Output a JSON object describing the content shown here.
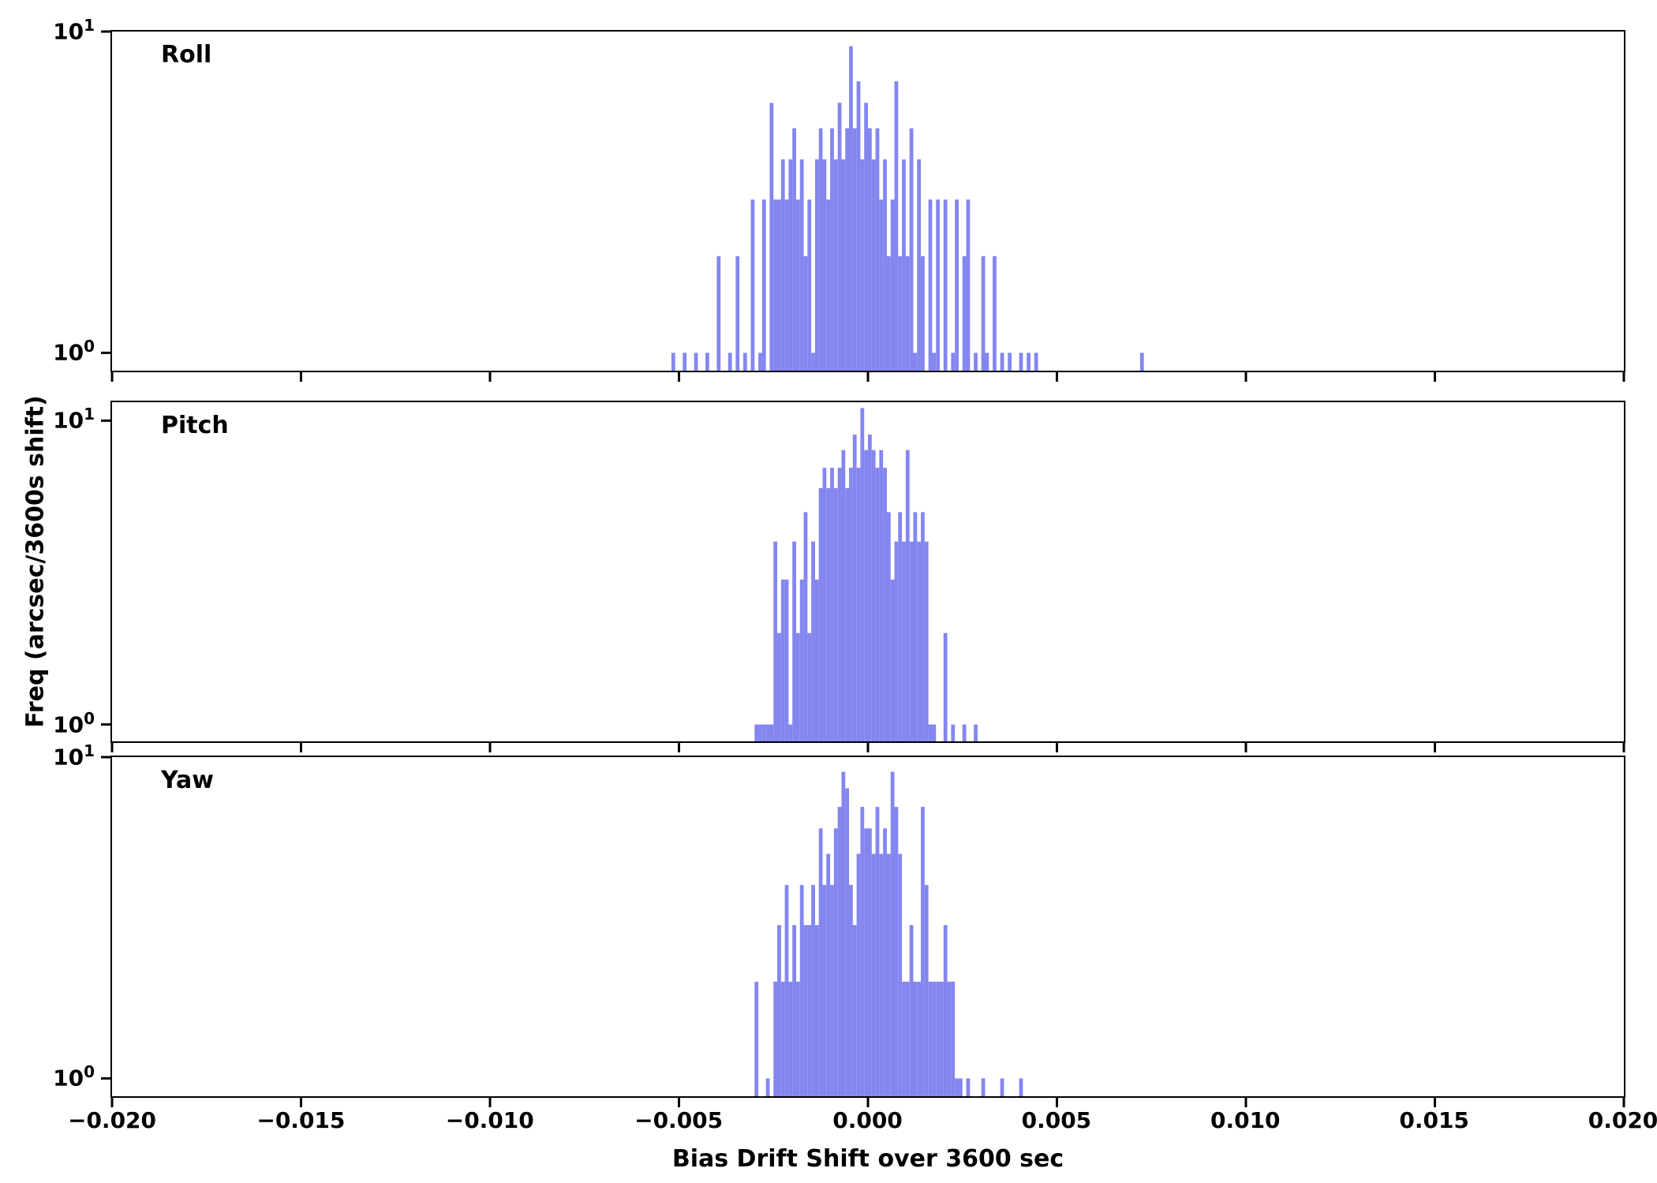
{
  "figure": {
    "xlabel": "Bias Drift Shift over 3600 sec",
    "ylabel": "Freq (arcsec/3600s shift)",
    "bar_color": "#8486f0",
    "axis_color": "#000000",
    "x_ticks": [
      {
        "v": -0.02,
        "label": "−0.020"
      },
      {
        "v": -0.015,
        "label": "−0.015"
      },
      {
        "v": -0.01,
        "label": "−0.010"
      },
      {
        "v": -0.005,
        "label": "−0.005"
      },
      {
        "v": 0.0,
        "label": "0.000"
      },
      {
        "v": 0.005,
        "label": "0.005"
      },
      {
        "v": 0.01,
        "label": "0.010"
      },
      {
        "v": 0.015,
        "label": "0.015"
      },
      {
        "v": 0.02,
        "label": "0.020"
      }
    ],
    "y_ticks": [
      {
        "v": 10,
        "base": "10",
        "exp": "1"
      },
      {
        "v": 1,
        "base": "10",
        "exp": "0"
      }
    ]
  },
  "chart_data": [
    {
      "type": "bar",
      "title": "Roll",
      "xscale": "linear",
      "yscale": "log",
      "xlim": [
        -0.02,
        0.02
      ],
      "ylim": [
        0.88,
        10
      ],
      "bin_width": 0.0001,
      "bins": [
        [
          -0.0052,
          1
        ],
        [
          -0.0049,
          1
        ],
        [
          -0.0046,
          1
        ],
        [
          -0.0043,
          1
        ],
        [
          -0.004,
          2
        ],
        [
          -0.0037,
          1
        ],
        [
          -0.0035,
          2
        ],
        [
          -0.0033,
          1
        ],
        [
          -0.0031,
          3
        ],
        [
          -0.0029,
          1
        ],
        [
          -0.0028,
          3
        ],
        [
          -0.0026,
          6
        ],
        [
          -0.0025,
          3
        ],
        [
          -0.0024,
          3
        ],
        [
          -0.0023,
          4
        ],
        [
          -0.0022,
          3
        ],
        [
          -0.0021,
          4
        ],
        [
          -0.002,
          5
        ],
        [
          -0.0019,
          3
        ],
        [
          -0.0018,
          4
        ],
        [
          -0.0017,
          2
        ],
        [
          -0.0016,
          3
        ],
        [
          -0.0015,
          1
        ],
        [
          -0.0014,
          4
        ],
        [
          -0.0013,
          5
        ],
        [
          -0.0012,
          4
        ],
        [
          -0.0011,
          3
        ],
        [
          -0.001,
          5
        ],
        [
          -0.0009,
          4
        ],
        [
          -0.0008,
          6
        ],
        [
          -0.0007,
          4
        ],
        [
          -0.0006,
          5
        ],
        [
          -0.0005,
          9
        ],
        [
          -0.0004,
          5
        ],
        [
          -0.0003,
          7
        ],
        [
          -0.0002,
          4
        ],
        [
          -0.0001,
          6
        ],
        [
          0,
          5
        ],
        [
          0.0001,
          4
        ],
        [
          0.0002,
          5
        ],
        [
          0.0003,
          3
        ],
        [
          0.0004,
          4
        ],
        [
          0.0005,
          2
        ],
        [
          0.0006,
          3
        ],
        [
          0.0007,
          7
        ],
        [
          0.0008,
          2
        ],
        [
          0.0009,
          4
        ],
        [
          0.001,
          2
        ],
        [
          0.0011,
          5
        ],
        [
          0.0012,
          1
        ],
        [
          0.0013,
          4
        ],
        [
          0.0014,
          2
        ],
        [
          0.0016,
          3
        ],
        [
          0.0017,
          1
        ],
        [
          0.0018,
          3
        ],
        [
          0.002,
          3
        ],
        [
          0.0022,
          1
        ],
        [
          0.0023,
          3
        ],
        [
          0.0025,
          2
        ],
        [
          0.0026,
          3
        ],
        [
          0.0028,
          1
        ],
        [
          0.003,
          2
        ],
        [
          0.0031,
          1
        ],
        [
          0.0033,
          2
        ],
        [
          0.0035,
          1
        ],
        [
          0.0037,
          1
        ],
        [
          0.004,
          1
        ],
        [
          0.0042,
          1
        ],
        [
          0.0044,
          1
        ],
        [
          0.0072,
          1
        ]
      ]
    },
    {
      "type": "bar",
      "title": "Pitch",
      "xscale": "linear",
      "yscale": "log",
      "xlim": [
        -0.02,
        0.02
      ],
      "ylim": [
        0.88,
        11.5
      ],
      "bin_width": 0.0001,
      "bins": [
        [
          -0.003,
          1
        ],
        [
          -0.0029,
          1
        ],
        [
          -0.0028,
          1
        ],
        [
          -0.0027,
          1
        ],
        [
          -0.0026,
          1
        ],
        [
          -0.0025,
          4
        ],
        [
          -0.0024,
          2
        ],
        [
          -0.0023,
          3
        ],
        [
          -0.0022,
          3
        ],
        [
          -0.0021,
          1
        ],
        [
          -0.002,
          4
        ],
        [
          -0.0019,
          2
        ],
        [
          -0.0018,
          3
        ],
        [
          -0.0017,
          5
        ],
        [
          -0.0016,
          2
        ],
        [
          -0.0015,
          4
        ],
        [
          -0.0014,
          3
        ],
        [
          -0.0013,
          6
        ],
        [
          -0.0012,
          7
        ],
        [
          -0.0011,
          6
        ],
        [
          -0.001,
          7
        ],
        [
          -0.0009,
          6
        ],
        [
          -0.0008,
          7
        ],
        [
          -0.0007,
          8
        ],
        [
          -0.0006,
          6
        ],
        [
          -0.0005,
          7
        ],
        [
          -0.0004,
          9
        ],
        [
          -0.0003,
          7
        ],
        [
          -0.0002,
          11
        ],
        [
          -0.0001,
          8
        ],
        [
          0,
          9
        ],
        [
          0.0001,
          8
        ],
        [
          0.0002,
          7
        ],
        [
          0.0003,
          8
        ],
        [
          0.0004,
          7
        ],
        [
          0.0005,
          5
        ],
        [
          0.0006,
          3
        ],
        [
          0.0007,
          4
        ],
        [
          0.0008,
          5
        ],
        [
          0.0009,
          4
        ],
        [
          0.001,
          8
        ],
        [
          0.0011,
          4
        ],
        [
          0.0012,
          5
        ],
        [
          0.0013,
          4
        ],
        [
          0.0014,
          5
        ],
        [
          0.0015,
          4
        ],
        [
          0.0016,
          1
        ],
        [
          0.0017,
          1
        ],
        [
          0.002,
          2
        ],
        [
          0.0022,
          1
        ],
        [
          0.0025,
          1
        ],
        [
          0.0028,
          1
        ]
      ]
    },
    {
      "type": "bar",
      "title": "Yaw",
      "xscale": "linear",
      "yscale": "log",
      "xlim": [
        -0.02,
        0.02
      ],
      "ylim": [
        0.88,
        10
      ],
      "bin_width": 0.0001,
      "bins": [
        [
          -0.003,
          2
        ],
        [
          -0.0027,
          1
        ],
        [
          -0.0025,
          2
        ],
        [
          -0.0024,
          3
        ],
        [
          -0.0023,
          2
        ],
        [
          -0.0022,
          4
        ],
        [
          -0.0021,
          2
        ],
        [
          -0.002,
          3
        ],
        [
          -0.0019,
          2
        ],
        [
          -0.0018,
          4
        ],
        [
          -0.0017,
          3
        ],
        [
          -0.0016,
          3
        ],
        [
          -0.0015,
          4
        ],
        [
          -0.0014,
          3
        ],
        [
          -0.0013,
          6
        ],
        [
          -0.0012,
          4
        ],
        [
          -0.0011,
          5
        ],
        [
          -0.001,
          4
        ],
        [
          -0.0009,
          6
        ],
        [
          -0.0008,
          7
        ],
        [
          -0.0007,
          9
        ],
        [
          -0.0006,
          8
        ],
        [
          -0.0005,
          4
        ],
        [
          -0.0004,
          3
        ],
        [
          -0.0003,
          5
        ],
        [
          -0.0002,
          7
        ],
        [
          -0.0001,
          6
        ],
        [
          0,
          6
        ],
        [
          0.0001,
          5
        ],
        [
          0.0002,
          7
        ],
        [
          0.0003,
          5
        ],
        [
          0.0004,
          6
        ],
        [
          0.0005,
          5
        ],
        [
          0.0006,
          9
        ],
        [
          0.0007,
          7
        ],
        [
          0.0008,
          5
        ],
        [
          0.0009,
          2
        ],
        [
          0.001,
          2
        ],
        [
          0.0011,
          3
        ],
        [
          0.0012,
          2
        ],
        [
          0.0013,
          2
        ],
        [
          0.0014,
          7
        ],
        [
          0.0015,
          4
        ],
        [
          0.0016,
          2
        ],
        [
          0.0017,
          2
        ],
        [
          0.0018,
          2
        ],
        [
          0.0019,
          2
        ],
        [
          0.002,
          3
        ],
        [
          0.0021,
          2
        ],
        [
          0.0022,
          2
        ],
        [
          0.0023,
          1
        ],
        [
          0.0024,
          1
        ],
        [
          0.0026,
          1
        ],
        [
          0.003,
          1
        ],
        [
          0.0035,
          1
        ],
        [
          0.004,
          1
        ]
      ]
    }
  ]
}
